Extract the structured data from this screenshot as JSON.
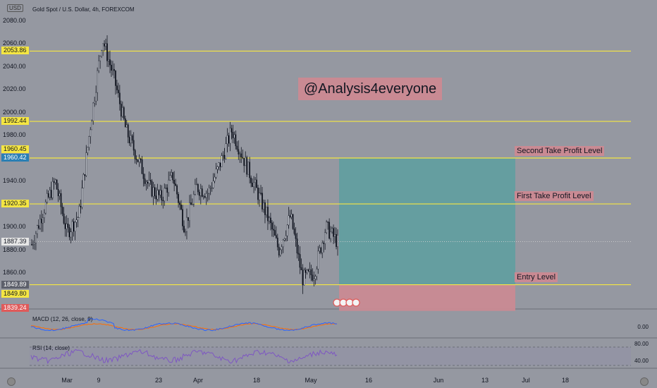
{
  "currency_badge": "USD",
  "chart_title": "Gold Spot / U.S. Dollar, 4h, FOREXCOM",
  "watermark": "@Analysis4everyone",
  "y_axis_ticks": [
    "2080.00",
    "2060.00",
    "2040.00",
    "2020.00",
    "2000.00",
    "1980.00",
    "1960.00",
    "1940.00",
    "1920.00",
    "1900.00",
    "1880.00",
    "1860.00"
  ],
  "price_tags": [
    {
      "label": "2053.86",
      "bg": "#f5e642",
      "fg": "#131722"
    },
    {
      "label": "1992.44",
      "bg": "#f5e642",
      "fg": "#131722"
    },
    {
      "label": "1960.45",
      "bg": "#f5e642",
      "fg": "#131722"
    },
    {
      "label": "1960.42",
      "bg": "#2a7fb4",
      "fg": "#ffffff"
    },
    {
      "label": "1920.35",
      "bg": "#f5e642",
      "fg": "#131722"
    },
    {
      "label": "1887.39",
      "bg": "#e6e6e6",
      "fg": "#131722"
    },
    {
      "label": "1849.89",
      "bg": "#5d606b",
      "fg": "#ffffff"
    },
    {
      "label": "1849.80",
      "bg": "#f5e642",
      "fg": "#131722"
    },
    {
      "label": "1839.24",
      "bg": "#e05a5a",
      "fg": "#ffffff"
    }
  ],
  "annotations": {
    "second_tp": "Second Take Profit Level",
    "first_tp": "First Take Profit Level",
    "entry": "Entry Level"
  },
  "x_axis_ticks": [
    "Mar",
    "9",
    "23",
    "Apr",
    "18",
    "May",
    "16",
    "Jun",
    "13",
    "Jul",
    "18"
  ],
  "macd": {
    "label": "MACD (12, 26, close, 9)",
    "value": "0.00"
  },
  "rsi": {
    "label": "RSI (14, close)",
    "upper": "80.00",
    "lower": "40.00"
  },
  "colors": {
    "background": "#9598a1",
    "level_line": "#f5e642",
    "profit_zone": "#5f9ea0",
    "loss_zone": "#c98a93",
    "candle": "#131722",
    "macd_line": "#2962ff",
    "signal_line": "#ff6d00",
    "rsi_line": "#7e57c2"
  },
  "chart_data": {
    "type": "candlestick",
    "symbol": "Gold Spot / U.S. Dollar",
    "interval": "4h",
    "levels": [
      2053.86,
      1992.44,
      1960.45,
      1920.35,
      1849.8
    ],
    "close_path": [
      [
        "Feb 20",
        1885
      ],
      [
        "Feb 24",
        1915
      ],
      [
        "Feb 28",
        1940
      ],
      [
        "Mar 2",
        1895
      ],
      [
        "Mar 6",
        1910
      ],
      [
        "Mar 10",
        1990
      ],
      [
        "Mar 13",
        2065
      ],
      [
        "Mar 15",
        2030
      ],
      [
        "Mar 17",
        1985
      ],
      [
        "Mar 20",
        1960
      ],
      [
        "Mar 23",
        1935
      ],
      [
        "Mar 27",
        1925
      ],
      [
        "Mar 30",
        1945
      ],
      [
        "Apr 3",
        1900
      ],
      [
        "Apr 6",
        1935
      ],
      [
        "Apr 10",
        1930
      ],
      [
        "Apr 13",
        1955
      ],
      [
        "Apr 17",
        1985
      ],
      [
        "Apr 20",
        1960
      ],
      [
        "Apr 24",
        1935
      ],
      [
        "Apr 27",
        1910
      ],
      [
        "May 1",
        1880
      ],
      [
        "May 3",
        1910
      ],
      [
        "May 5",
        1855
      ],
      [
        "May 8",
        1860
      ],
      [
        "May 10",
        1900
      ],
      [
        "May 12",
        1887
      ]
    ]
  }
}
